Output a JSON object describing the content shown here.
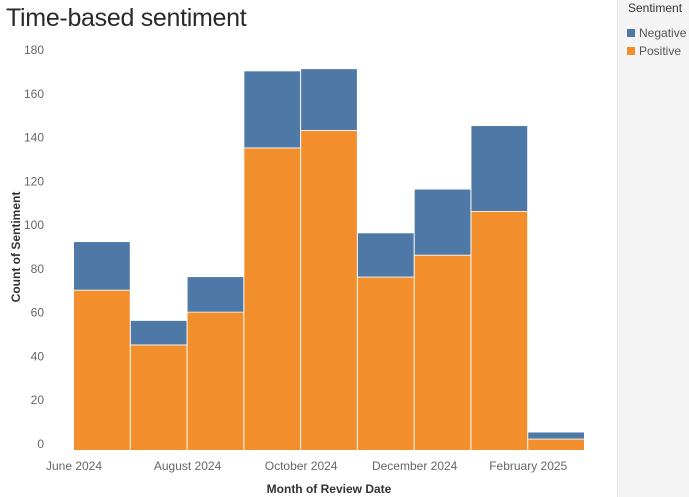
{
  "chart_data": {
    "type": "bar",
    "stacked": true,
    "title": "Time-based sentiment",
    "xlabel": "Month of Review Date",
    "ylabel": "Count of Sentiment",
    "ylim": [
      0,
      180
    ],
    "yticks": [
      0,
      20,
      40,
      60,
      80,
      100,
      120,
      140,
      160,
      180
    ],
    "x_tick_labels": [
      "June 2024",
      "August 2024",
      "October 2024",
      "December 2024",
      "February 2025"
    ],
    "categories": [
      "June 2024",
      "July 2024",
      "August 2024",
      "September 2024",
      "October 2024",
      "November 2024",
      "December 2024",
      "January 2025",
      "February 2025"
    ],
    "series": [
      {
        "name": "Positive",
        "color": "#F28E2B",
        "values": [
          73,
          48,
          63,
          138,
          146,
          79,
          89,
          109,
          5
        ]
      },
      {
        "name": "Negative",
        "color": "#4E79A7",
        "values": [
          22,
          11,
          16,
          35,
          28,
          20,
          30,
          39,
          3
        ]
      }
    ],
    "legend": {
      "title": "Sentiment",
      "position": "right",
      "entries": [
        {
          "name": "Negative",
          "color": "#4E79A7"
        },
        {
          "name": "Positive",
          "color": "#F28E2B"
        }
      ]
    },
    "grid": false
  }
}
